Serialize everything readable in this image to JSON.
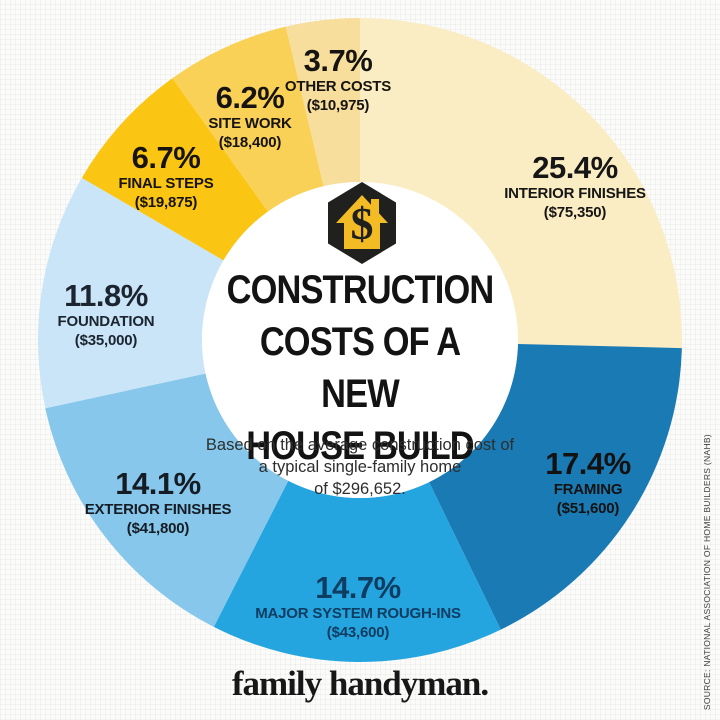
{
  "page": {
    "background": "#FBFBFA"
  },
  "chart_data": {
    "type": "pie",
    "donut": true,
    "direction": "clockwise",
    "start_angle_deg": 0,
    "title_lines": [
      "CONSTRUCTION",
      "COSTS OF A NEW",
      "HOUSE BUILD"
    ],
    "subtitle_lines": [
      "Based on the average construction cost of",
      "a typical single-family home",
      "of $296,652."
    ],
    "average_total_cost": "$296,652",
    "segments": [
      {
        "label": "INTERIOR FINISHES",
        "pct": 25.4,
        "pct_label": "25.4%",
        "amount": "($75,350)",
        "color": "#FAECC3",
        "text_color": "#161616"
      },
      {
        "label": "FRAMING",
        "pct": 17.4,
        "pct_label": "17.4%",
        "amount": "($51,600)",
        "color": "#1A7AB4",
        "text_color": "#121212"
      },
      {
        "label": "MAJOR SYSTEM ROUGH-INS",
        "pct": 14.7,
        "pct_label": "14.7%",
        "amount": "($43,600)",
        "color": "#25A5DF",
        "text_color": "#0E3D61"
      },
      {
        "label": "EXTERIOR FINISHES",
        "pct": 14.1,
        "pct_label": "14.1%",
        "amount": "($41,800)",
        "color": "#86C7EB",
        "text_color": "#161C24"
      },
      {
        "label": "FOUNDATION",
        "pct": 11.8,
        "pct_label": "11.8%",
        "amount": "($35,000)",
        "color": "#C9E5F7",
        "text_color": "#1C2430"
      },
      {
        "label": "FINAL STEPS",
        "pct": 6.7,
        "pct_label": "6.7%",
        "amount": "($19,875)",
        "color": "#FBC513",
        "text_color": "#161310"
      },
      {
        "label": "SITE WORK",
        "pct": 6.2,
        "pct_label": "6.2%",
        "amount": "($18,400)",
        "color": "#F9D156",
        "text_color": "#161310"
      },
      {
        "label": "OTHER COSTS",
        "pct": 3.7,
        "pct_label": "3.7%",
        "amount": "($10,975)",
        "color": "#F7DE9C",
        "text_color": "#161310"
      }
    ]
  },
  "center_badge": {
    "icon": "hexagon-house-dollar-icon",
    "dollar_glyph": "$",
    "hexagon_color": "#20201E",
    "house_color": "#F3BC25"
  },
  "branding": {
    "logo_text": "family handyman.",
    "source_text": "SOURCE: NATIONAL ASSOCIATION OF HOME BUILDERS (NAHB)"
  }
}
